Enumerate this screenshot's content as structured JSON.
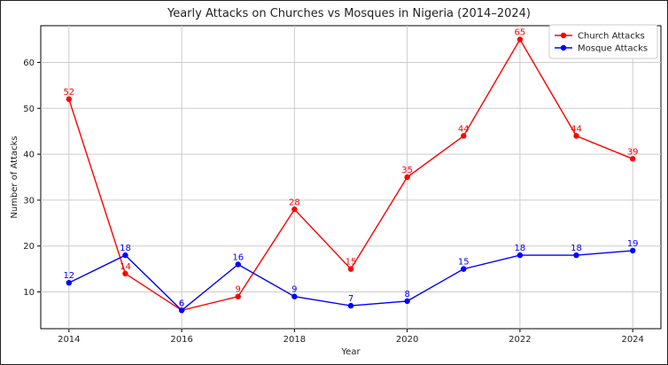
{
  "chart_data": {
    "type": "line",
    "title": "Yearly Attacks on Churches vs Mosques in Nigeria (2014–2024)",
    "xlabel": "Year",
    "ylabel": "Number of Attacks",
    "x": [
      2014,
      2015,
      2016,
      2017,
      2018,
      2019,
      2020,
      2021,
      2022,
      2023,
      2024
    ],
    "xticks": [
      "2014",
      "2016",
      "2018",
      "2020",
      "2022",
      "2024"
    ],
    "yticks": [
      "10",
      "20",
      "30",
      "40",
      "50",
      "60"
    ],
    "xlim": [
      2013.5,
      2024.5
    ],
    "ylim": [
      2.0,
      68.0
    ],
    "grid": true,
    "legend_position": "top-right",
    "series": [
      {
        "name": "Church Attacks",
        "color": "#ff0000",
        "values": [
          52,
          14,
          6,
          9,
          28,
          15,
          35,
          44,
          65,
          44,
          39
        ]
      },
      {
        "name": "Mosque Attacks",
        "color": "#0000ff",
        "values": [
          12,
          18,
          6,
          16,
          9,
          7,
          8,
          15,
          18,
          18,
          19
        ]
      }
    ]
  }
}
